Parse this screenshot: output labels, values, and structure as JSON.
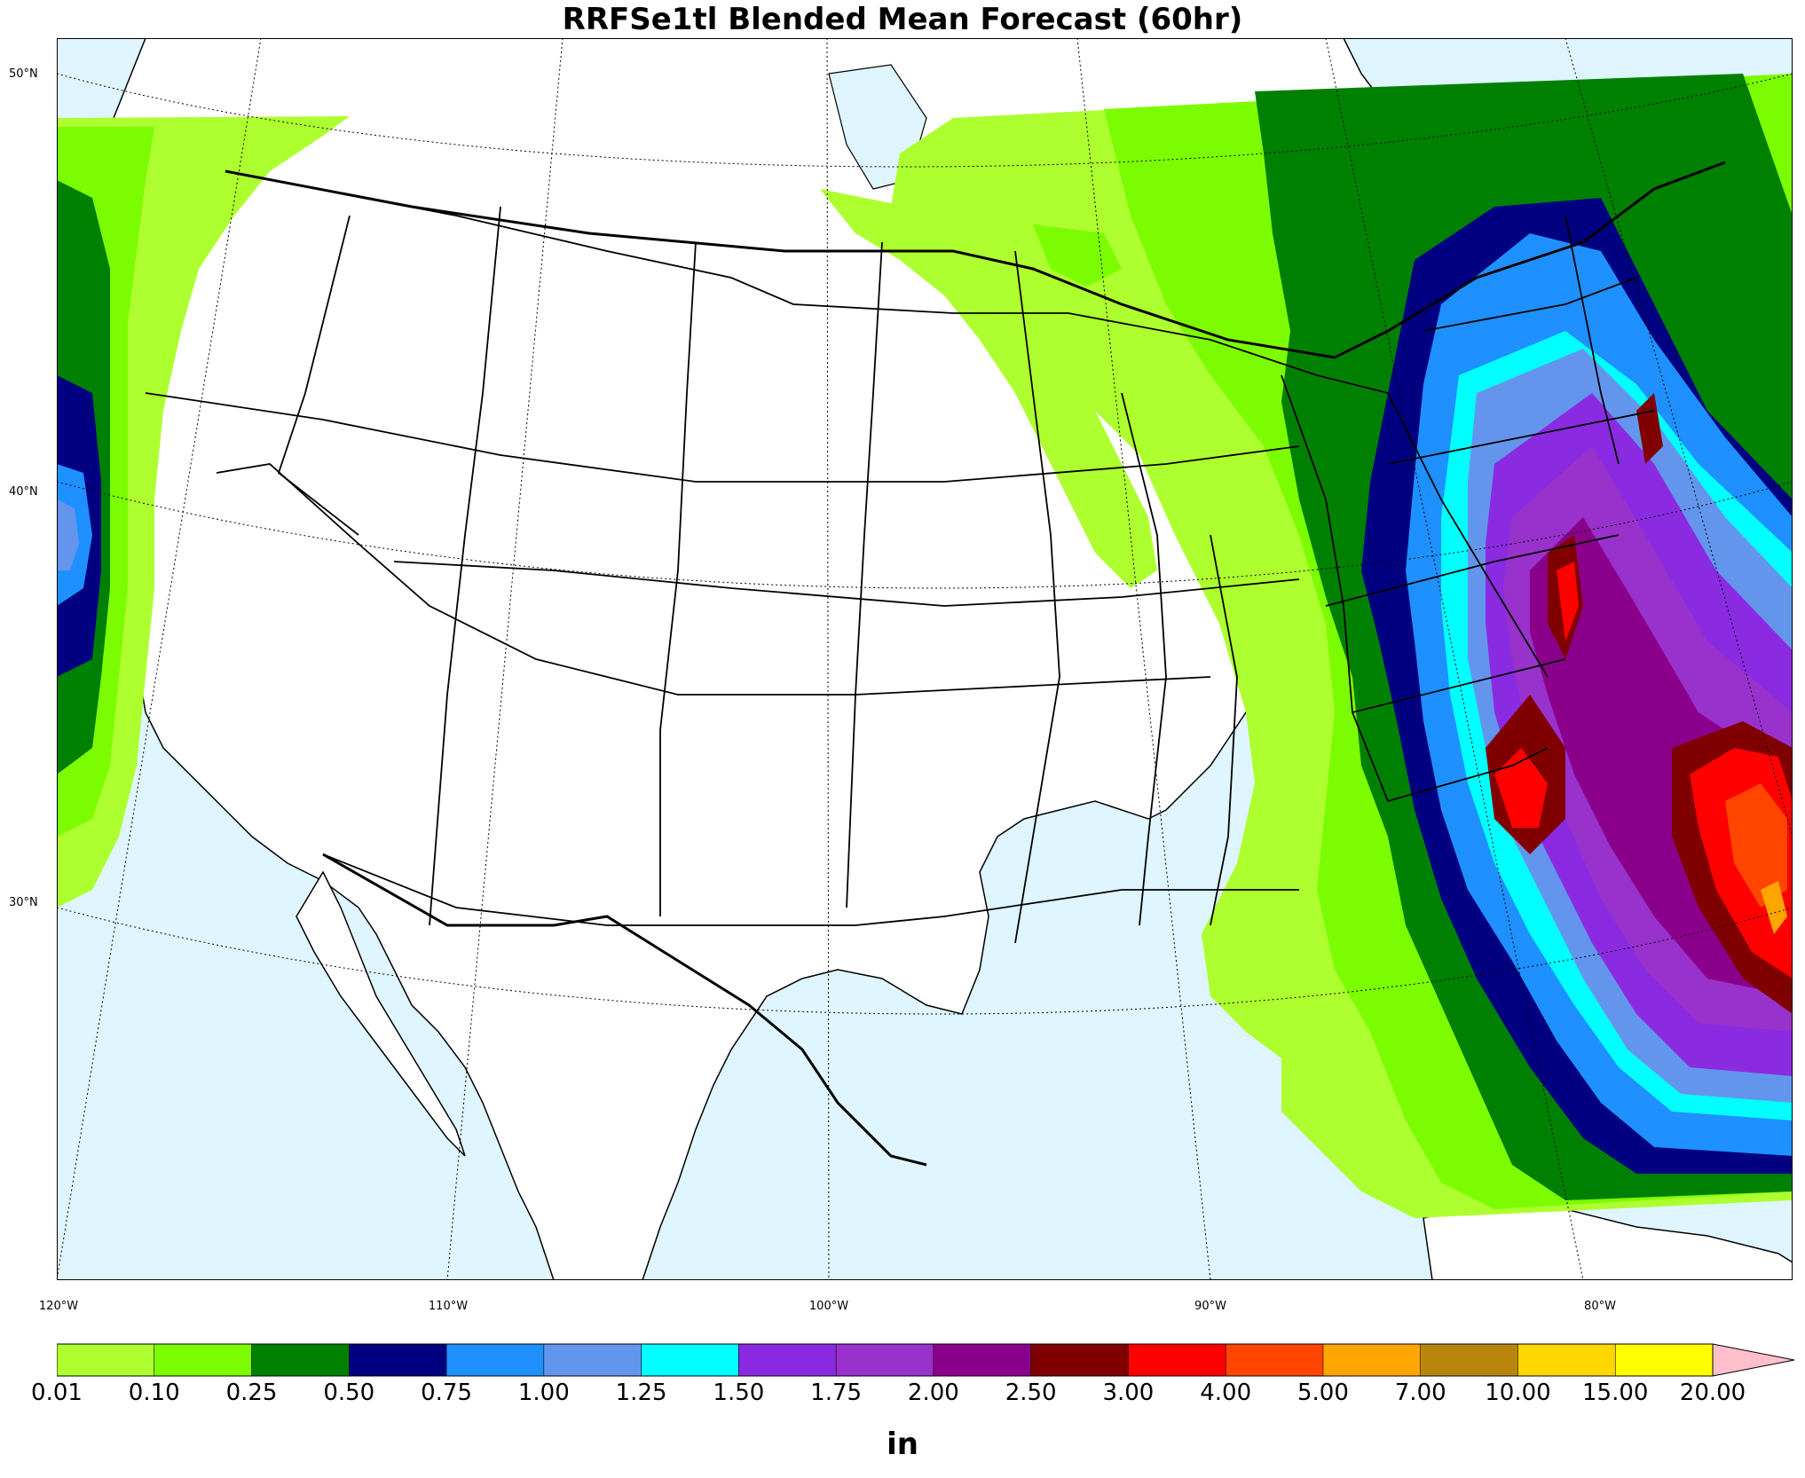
{
  "title": "RRFSe1tl Blended Mean Forecast (60hr)",
  "lat_labels": [
    "50°N",
    "40°N",
    "30°N"
  ],
  "lon_labels": [
    "120°W",
    "110°W",
    "100°W",
    "90°W",
    "80°W"
  ],
  "colorbar": {
    "unit": "in",
    "ticks": [
      "0.01",
      "0.10",
      "0.25",
      "0.50",
      "0.75",
      "1.00",
      "1.25",
      "1.50",
      "1.75",
      "2.00",
      "2.50",
      "3.00",
      "4.00",
      "5.00",
      "7.00",
      "10.00",
      "15.00",
      "20.00"
    ],
    "colors": [
      "#adff2f",
      "#7cfc00",
      "#008000",
      "#000080",
      "#1e90ff",
      "#6495ed",
      "#00ffff",
      "#8a2be2",
      "#9932cc",
      "#8b008b",
      "#800000",
      "#ff0000",
      "#ff4500",
      "#ffa500",
      "#b8860b",
      "#ffd700",
      "#ffff00"
    ],
    "extend_color": "#ffc0cb"
  },
  "colors": {
    "water": "#dff5ff",
    "land": "#ffffff",
    "border": "#000000"
  }
}
